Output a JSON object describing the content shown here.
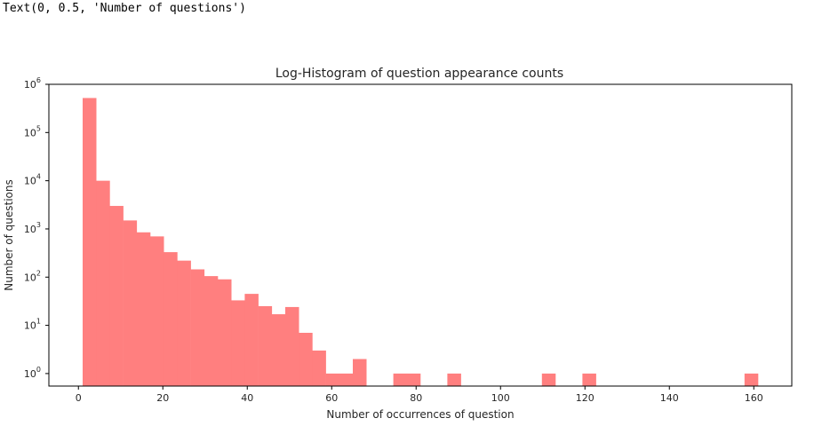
{
  "output_text": "Text(0, 0.5, 'Number of questions')",
  "chart_data": {
    "type": "bar",
    "title": "Log-Histogram of question appearance counts",
    "xlabel": "Number of occurrences of question",
    "ylabel": "Number of questions",
    "yscale": "log",
    "color": "#ff7f7f",
    "xlim": [
      -7,
      169
    ],
    "ylim": [
      0.55,
      1000000
    ],
    "xticks": [
      0,
      20,
      40,
      60,
      80,
      100,
      120,
      140,
      160
    ],
    "yticks": [
      {
        "value": 1,
        "base": "10",
        "exp": "0"
      },
      {
        "value": 10,
        "base": "10",
        "exp": "1"
      },
      {
        "value": 100,
        "base": "10",
        "exp": "2"
      },
      {
        "value": 1000,
        "base": "10",
        "exp": "3"
      },
      {
        "value": 10000,
        "base": "10",
        "exp": "4"
      },
      {
        "value": 100000,
        "base": "10",
        "exp": "5"
      },
      {
        "value": 1000000,
        "base": "10",
        "exp": "6"
      }
    ],
    "bin_edges": [
      1.0,
      4.2,
      7.4,
      10.6,
      13.8,
      17.0,
      20.2,
      23.4,
      26.6,
      29.8,
      33.0,
      36.2,
      39.4,
      42.6,
      45.8,
      49.0,
      52.2,
      55.4,
      58.6,
      61.8,
      65.0,
      68.2,
      71.4,
      74.6,
      77.8,
      81.0,
      84.2,
      87.4,
      90.6,
      93.8,
      97.0,
      100.2,
      103.4,
      106.6,
      109.8,
      113.0,
      116.2,
      119.4,
      122.6,
      125.8,
      129.0,
      132.2,
      135.4,
      138.6,
      141.8,
      145.0,
      148.2,
      151.4,
      154.6,
      157.8,
      161.0
    ],
    "counts": [
      520000,
      10000,
      3000,
      1500,
      850,
      700,
      330,
      220,
      145,
      105,
      90,
      33,
      45,
      25,
      17,
      24,
      7,
      3,
      1,
      1,
      2,
      0,
      0,
      1,
      1,
      0,
      0,
      1,
      0,
      0,
      0,
      0,
      0,
      0,
      1,
      0,
      0,
      1,
      0,
      0,
      0,
      0,
      0,
      0,
      0,
      0,
      0,
      0,
      0,
      1
    ]
  }
}
